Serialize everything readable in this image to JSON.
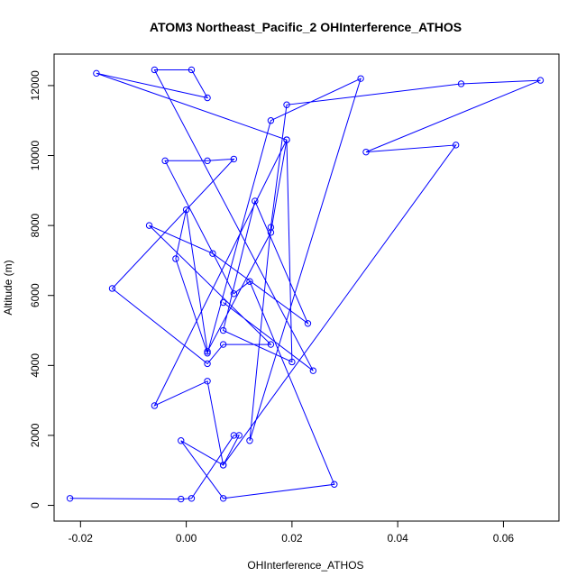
{
  "chart_data": {
    "type": "line",
    "title": "ATOM3 Northeast_Pacific_2 OHInterference_ATHOS",
    "xlabel": "OHInterference_ATHOS",
    "ylabel": "Altitude (m)",
    "xlim": [
      -0.025,
      0.0705
    ],
    "ylim": [
      -450,
      12900
    ],
    "xticks": [
      -0.02,
      0.0,
      0.02,
      0.04,
      0.06
    ],
    "xtick_labels": [
      "-0.02",
      "0.00",
      "0.02",
      "0.04",
      "0.06"
    ],
    "yticks": [
      0,
      2000,
      4000,
      6000,
      8000,
      10000,
      12000
    ],
    "ytick_labels": [
      "0",
      "2000",
      "4000",
      "6000",
      "8000",
      "10000",
      "12000"
    ],
    "grid": false,
    "marker": "open-circle",
    "color": "#0000ff",
    "series": [
      {
        "x": [
          -0.022,
          -0.001,
          0.001,
          0.009,
          0.01,
          0.007,
          -0.001,
          0.007,
          0.028,
          0.012,
          0.009,
          -0.004,
          0.004,
          0.009,
          -0.014,
          0.004,
          0.007,
          0.016,
          -0.007,
          0.005,
          0.023,
          0.013,
          0.007,
          0.02,
          0.019,
          0.016,
          0.004,
          0.0,
          -0.002,
          0.004,
          0.016,
          0.033,
          0.012,
          0.016,
          0.019,
          0.052,
          0.067,
          0.034,
          0.051,
          0.007,
          0.004,
          -0.006,
          0.019,
          -0.017,
          0.004,
          0.001,
          -0.006,
          0.024,
          0.007
        ],
        "y": [
          200,
          180,
          200,
          2000,
          2000,
          1150,
          1850,
          200,
          600,
          6400,
          6050,
          9850,
          9850,
          9900,
          6200,
          4050,
          4600,
          4600,
          8000,
          7200,
          5200,
          8700,
          5000,
          4100,
          10450,
          7800,
          4400,
          8450,
          7050,
          4350,
          11000,
          12200,
          1850,
          7950,
          11450,
          12050,
          12150,
          10100,
          10300,
          1150,
          3550,
          2850,
          10450,
          12350,
          11650,
          12450,
          12450,
          3850,
          5800
        ]
      }
    ]
  }
}
